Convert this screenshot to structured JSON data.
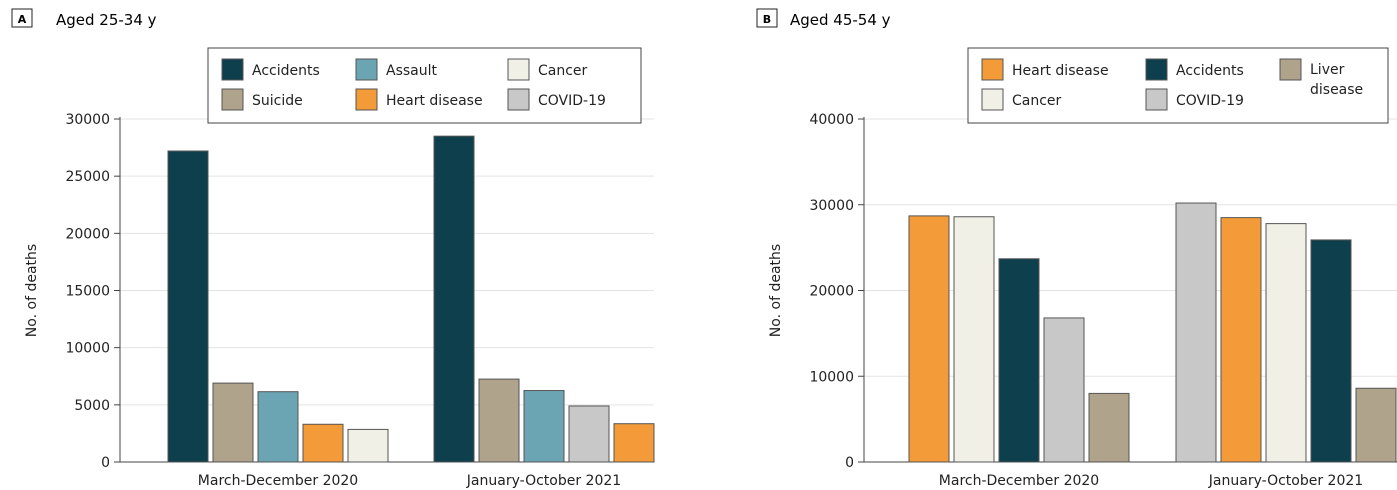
{
  "chart_data": [
    {
      "type": "bar",
      "panel_letter": "A",
      "title": "Aged 25-34 y",
      "ylabel": "No. of deaths",
      "xlabel": "",
      "ylim": [
        0,
        30000
      ],
      "yticks": [
        "0",
        "5000",
        "10000",
        "15000",
        "20000",
        "25000",
        "30000"
      ],
      "ytick_values": [
        0,
        5000,
        10000,
        15000,
        20000,
        25000,
        30000
      ],
      "grid": true,
      "legend_position": "top-right",
      "legend_rows": [
        [
          "Accidents",
          "Assault",
          "Cancer"
        ],
        [
          "Suicide",
          "Heart disease",
          "COVID-19"
        ]
      ],
      "categories": [
        "March-December 2020",
        "January-October 2021"
      ],
      "groups": [
        {
          "category": "March-December 2020",
          "bars": [
            {
              "name": "Accidents",
              "value": 27200
            },
            {
              "name": "Suicide",
              "value": 6900
            },
            {
              "name": "Assault",
              "value": 6150
            },
            {
              "name": "Heart disease",
              "value": 3300
            },
            {
              "name": "Cancer",
              "value": 2850
            }
          ]
        },
        {
          "category": "January-October 2021",
          "bars": [
            {
              "name": "Accidents",
              "value": 28500
            },
            {
              "name": "Suicide",
              "value": 7250
            },
            {
              "name": "Assault",
              "value": 6250
            },
            {
              "name": "COVID-19",
              "value": 4900
            },
            {
              "name": "Heart disease",
              "value": 3350
            }
          ]
        }
      ]
    },
    {
      "type": "bar",
      "panel_letter": "B",
      "title": "Aged 45-54 y",
      "ylabel": "No. of deaths",
      "xlabel": "",
      "ylim": [
        0,
        40000
      ],
      "yticks": [
        "0",
        "10000",
        "20000",
        "30000",
        "40000"
      ],
      "ytick_values": [
        0,
        10000,
        20000,
        30000,
        40000
      ],
      "grid": true,
      "legend_position": "top-right",
      "legend_rows": [
        [
          "Heart disease",
          "Accidents",
          "Liver disease"
        ],
        [
          "Cancer",
          "COVID-19"
        ]
      ],
      "categories": [
        "March-December 2020",
        "January-October 2021"
      ],
      "groups": [
        {
          "category": "March-December 2020",
          "bars": [
            {
              "name": "Heart disease",
              "value": 28700
            },
            {
              "name": "Cancer",
              "value": 28600
            },
            {
              "name": "Accidents",
              "value": 23700
            },
            {
              "name": "COVID-19",
              "value": 16800
            },
            {
              "name": "Liver disease",
              "value": 8000
            }
          ]
        },
        {
          "category": "January-October 2021",
          "bars": [
            {
              "name": "COVID-19",
              "value": 30200
            },
            {
              "name": "Heart disease",
              "value": 28500
            },
            {
              "name": "Cancer",
              "value": 27800
            },
            {
              "name": "Accidents",
              "value": 25900
            },
            {
              "name": "Liver disease",
              "value": 8600
            }
          ]
        }
      ]
    }
  ],
  "colors": {
    "Accidents": "#0d3f4d",
    "Assault": "#6ba5b4",
    "Cancer": "#f1f0e6",
    "Suicide": "#b0a38b",
    "Heart disease": "#f29b38",
    "COVID-19": "#c8c8c8",
    "Liver disease": "#b0a38b"
  }
}
